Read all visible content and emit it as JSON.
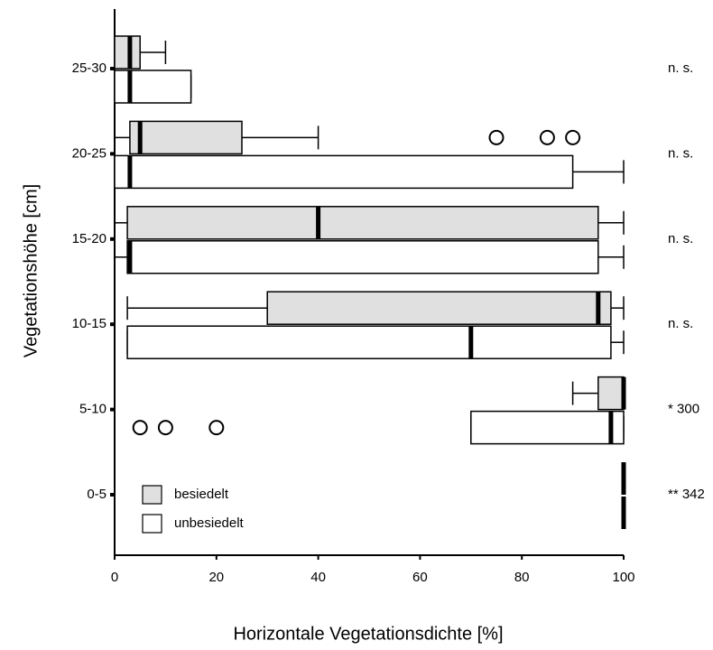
{
  "chart_data": {
    "type": "boxplot",
    "orientation": "horizontal",
    "y_label": "Vegetationshöhe [cm]",
    "x_label": "Horizontale Vegetationsdichte [%]",
    "categories": [
      "0-5",
      "5-10",
      "10-15",
      "15-20",
      "20-25",
      "25-30"
    ],
    "annotations": [
      "** 342",
      "* 300",
      "n. s.",
      "n. s.",
      "n. s.",
      "n. s."
    ],
    "xlim": [
      0,
      100
    ],
    "xticks": [
      0,
      20,
      40,
      60,
      80,
      100
    ],
    "legend": "lower left",
    "series": [
      {
        "name": "besiedelt",
        "color": "#e0e0e0",
        "min": [
          100,
          90,
          2.5,
          0,
          0,
          0
        ],
        "q1": [
          100,
          95,
          30,
          2.5,
          3,
          0
        ],
        "median": [
          100,
          100,
          95,
          40,
          5,
          3
        ],
        "q3": [
          100,
          100,
          97.5,
          95,
          25,
          5
        ],
        "max": [
          100,
          100,
          100,
          100,
          40,
          10
        ],
        "outliers": [
          [],
          [],
          [],
          [],
          [
            75,
            85,
            90
          ],
          []
        ]
      },
      {
        "name": "unbesiedelt",
        "color": "#ffffff",
        "min": [
          100,
          70,
          2.5,
          0,
          0,
          0
        ],
        "q1": [
          100,
          70,
          2.5,
          2.5,
          0,
          0
        ],
        "median": [
          100,
          97.5,
          70,
          3,
          3,
          3
        ],
        "q3": [
          100,
          100,
          97.5,
          95,
          90,
          15
        ],
        "max": [
          100,
          100,
          100,
          100,
          100,
          15
        ],
        "outliers": [
          [],
          [
            5,
            10,
            20
          ],
          [],
          [],
          [],
          []
        ]
      }
    ]
  }
}
